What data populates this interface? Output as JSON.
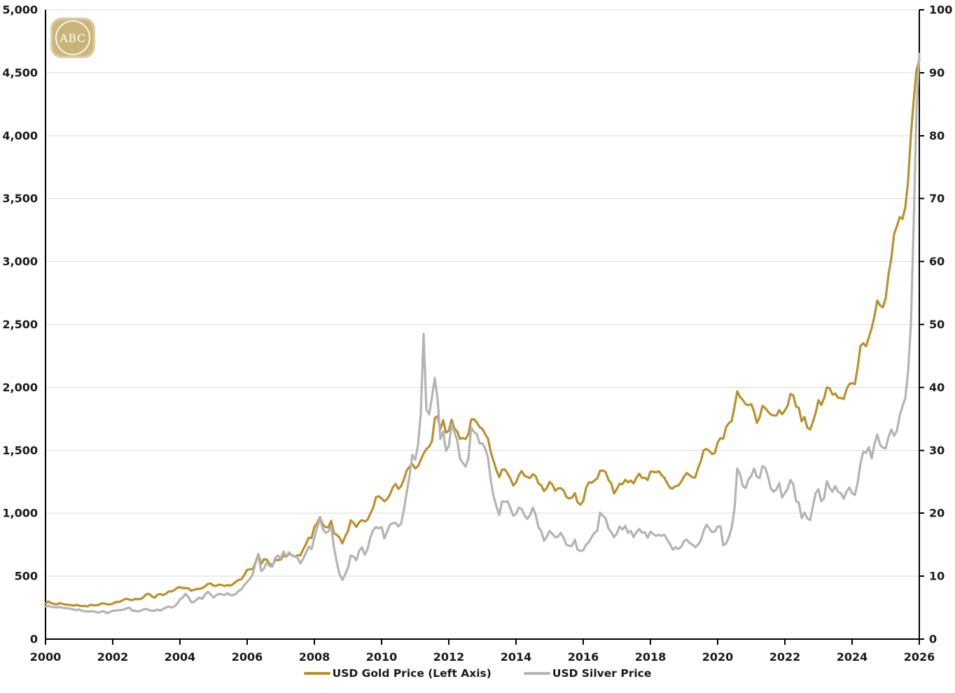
{
  "logo": {
    "text": "ABC",
    "tile_color": "#C9B377"
  },
  "colors": {
    "gold_line": "#B7922D",
    "silver_line": "#B4B4B4",
    "gridline": "#DADADA",
    "axis": "#000000",
    "text": "#1a1a1a",
    "background": "#ffffff"
  },
  "legend": {
    "position": "bottom-center",
    "items": [
      {
        "label": "USD Gold Price (Left Axis)",
        "color": "#B7922D"
      },
      {
        "label": "USD Silver Price",
        "color": "#B4B4B4"
      }
    ]
  },
  "chart_data": {
    "type": "line",
    "title": "",
    "grid": "horizontal-only",
    "legend_position": "bottom-center",
    "x_axis": {
      "label": "",
      "range": [
        2000,
        2026
      ],
      "tick_values": [
        2000,
        2002,
        2004,
        2006,
        2008,
        2010,
        2012,
        2014,
        2016,
        2018,
        2020,
        2022,
        2024,
        2026
      ],
      "tick_labels": [
        "2000",
        "2002",
        "2004",
        "2006",
        "2008",
        "2010",
        "2012",
        "2014",
        "2016",
        "2018",
        "2020",
        "2022",
        "2024",
        "2026"
      ]
    },
    "y_axis_left": {
      "label": "",
      "series": "USD Gold Price",
      "range": [
        0,
        5000
      ],
      "tick_values": [
        0,
        500,
        1000,
        1500,
        2000,
        2500,
        3000,
        3500,
        4000,
        4500,
        5000
      ],
      "tick_labels": [
        "0",
        "500",
        "1,000",
        "1,500",
        "2,000",
        "2,500",
        "3,000",
        "3,500",
        "4,000",
        "4,500",
        "5,000"
      ]
    },
    "y_axis_right": {
      "label": "",
      "series": "USD Silver Price",
      "range": [
        0,
        100
      ],
      "tick_values": [
        0,
        10,
        20,
        30,
        40,
        50,
        60,
        70,
        80,
        90,
        100
      ],
      "tick_labels": [
        "0",
        "10",
        "20",
        "30",
        "40",
        "50",
        "60",
        "70",
        "80",
        "90",
        "100"
      ]
    },
    "series": [
      {
        "name": "USD Gold Price (Left Axis)",
        "axis": "left",
        "color": "#B7922D",
        "x_start": 2000.0,
        "x_step": 0.08333333,
        "unit": "USD/oz",
        "values": [
          283,
          300,
          286,
          280,
          275,
          286,
          281,
          274,
          274,
          270,
          266,
          272,
          266,
          262,
          263,
          260,
          272,
          270,
          268,
          272,
          284,
          283,
          276,
          276,
          281,
          295,
          294,
          302,
          314,
          321,
          313,
          310,
          319,
          317,
          319,
          333,
          357,
          359,
          340,
          328,
          355,
          357,
          351,
          360,
          379,
          379,
          389,
          407,
          414,
          405,
          406,
          403,
          384,
          392,
          398,
          400,
          405,
          420,
          439,
          442,
          424,
          423,
          434,
          429,
          422,
          430,
          424,
          437,
          456,
          470,
          476,
          510,
          550,
          555,
          557,
          611,
          675,
          596,
          634,
          632,
          598,
          586,
          627,
          629,
          631,
          665,
          655,
          679,
          667,
          655,
          665,
          665,
          713,
          755,
          806,
          803,
          890,
          922,
          968,
          910,
          889,
          889,
          940,
          839,
          829,
          806,
          760,
          816,
          858,
          943,
          924,
          890,
          929,
          946,
          934,
          949,
          997,
          1043,
          1127,
          1135,
          1118,
          1095,
          1113,
          1149,
          1205,
          1233,
          1193,
          1216,
          1271,
          1342,
          1370,
          1391,
          1356,
          1373,
          1424,
          1474,
          1511,
          1529,
          1573,
          1756,
          1772,
          1666,
          1739,
          1640,
          1656,
          1743,
          1674,
          1650,
          1591,
          1598,
          1590,
          1626,
          1745,
          1747,
          1722,
          1685,
          1671,
          1628,
          1593,
          1485,
          1414,
          1343,
          1286,
          1347,
          1348,
          1316,
          1276,
          1221,
          1244,
          1301,
          1336,
          1299,
          1288,
          1279,
          1311,
          1296,
          1238,
          1222,
          1176,
          1200,
          1250,
          1227,
          1178,
          1198,
          1199,
          1181,
          1130,
          1117,
          1125,
          1159,
          1086,
          1068,
          1097,
          1200,
          1246,
          1242,
          1260,
          1276,
          1337,
          1340,
          1327,
          1266,
          1238,
          1157,
          1192,
          1234,
          1231,
          1266,
          1246,
          1260,
          1237,
          1283,
          1314,
          1280,
          1282,
          1264,
          1331,
          1330,
          1325,
          1334,
          1303,
          1281,
          1238,
          1201,
          1198,
          1215,
          1221,
          1250,
          1292,
          1320,
          1301,
          1286,
          1284,
          1359,
          1413,
          1500,
          1511,
          1495,
          1471,
          1479,
          1561,
          1597,
          1592,
          1683,
          1716,
          1732,
          1843,
          1969,
          1922,
          1900,
          1866,
          1858,
          1867,
          1808,
          1718,
          1762,
          1853,
          1835,
          1807,
          1784,
          1777,
          1777,
          1820,
          1787,
          1816,
          1856,
          1948,
          1937,
          1848,
          1837,
          1731,
          1765,
          1681,
          1664,
          1725,
          1798,
          1898,
          1860,
          1913,
          2000,
          1992,
          1943,
          1951,
          1918,
          1916,
          1907,
          1984,
          2026,
          2034,
          2025,
          2160,
          2330,
          2351,
          2327,
          2398,
          2470,
          2568,
          2690,
          2651,
          2636,
          2708,
          2897,
          3024,
          3218,
          3280,
          3353,
          3338,
          3430,
          3640,
          4000,
          4280,
          4520,
          4600
        ]
      },
      {
        "name": "USD Silver Price",
        "axis": "right",
        "color": "#B4B4B4",
        "x_start": 2000.0,
        "x_step": 0.08333333,
        "unit": "USD/oz",
        "values": [
          5.2,
          5.3,
          5.1,
          5.1,
          5.0,
          5.1,
          5.0,
          4.9,
          4.9,
          4.8,
          4.7,
          4.6,
          4.7,
          4.5,
          4.4,
          4.4,
          4.4,
          4.4,
          4.3,
          4.2,
          4.4,
          4.4,
          4.1,
          4.3,
          4.5,
          4.5,
          4.6,
          4.6,
          4.7,
          4.9,
          5.0,
          4.5,
          4.5,
          4.4,
          4.5,
          4.7,
          4.8,
          4.6,
          4.5,
          4.5,
          4.7,
          4.5,
          4.8,
          5.0,
          5.2,
          5.0,
          5.2,
          5.6,
          6.3,
          6.6,
          7.2,
          6.7,
          5.9,
          5.9,
          6.3,
          6.6,
          6.4,
          7.1,
          7.5,
          7.1,
          6.6,
          7.0,
          7.2,
          7.1,
          7.0,
          7.3,
          7.0,
          7.0,
          7.2,
          7.7,
          7.9,
          8.6,
          9.1,
          9.6,
          10.3,
          12.1,
          13.4,
          10.8,
          11.2,
          12.2,
          11.6,
          11.5,
          12.9,
          13.3,
          12.8,
          13.9,
          13.2,
          13.8,
          13.2,
          13.2,
          12.9,
          12.0,
          12.8,
          13.7,
          14.7,
          14.3,
          16.1,
          17.7,
          19.2,
          17.5,
          16.9,
          17.1,
          18.0,
          14.6,
          12.2,
          10.3,
          9.4,
          10.3,
          11.3,
          13.3,
          13.1,
          12.5,
          14.0,
          14.6,
          13.4,
          14.3,
          16.2,
          17.3,
          17.8,
          17.6,
          17.8,
          16.0,
          17.1,
          18.2,
          18.4,
          18.5,
          17.9,
          18.4,
          20.6,
          23.4,
          26.0,
          29.3,
          28.5,
          30.8,
          35.8,
          48.5,
          36.5,
          35.7,
          38.5,
          41.5,
          38.2,
          31.8,
          33.0,
          29.9,
          30.7,
          34.1,
          32.9,
          31.6,
          28.7,
          28.0,
          27.4,
          28.7,
          33.6,
          32.9,
          32.6,
          31.1,
          31.1,
          30.3,
          28.8,
          25.2,
          22.7,
          21.1,
          19.7,
          21.9,
          21.8,
          21.9,
          20.8,
          19.6,
          19.9,
          20.9,
          20.7,
          19.7,
          19.1,
          19.7,
          20.9,
          19.8,
          17.8,
          17.2,
          15.6,
          16.3,
          17.2,
          16.7,
          16.2,
          16.3,
          16.9,
          16.1,
          15.0,
          14.8,
          14.8,
          15.8,
          14.2,
          14.0,
          14.1,
          15.0,
          15.4,
          16.2,
          16.9,
          17.2,
          20.1,
          19.6,
          19.2,
          17.6,
          17.0,
          16.2,
          16.8,
          17.9,
          17.4,
          18.0,
          16.9,
          17.2,
          16.2,
          17.0,
          17.5,
          16.9,
          17.0,
          16.1,
          17.1,
          16.7,
          16.4,
          16.6,
          16.4,
          16.6,
          15.8,
          15.1,
          14.2,
          14.6,
          14.3,
          14.7,
          15.6,
          15.8,
          15.3,
          15.0,
          14.6,
          15.0,
          15.7,
          17.2,
          18.2,
          17.6,
          17.0,
          17.1,
          17.9,
          17.9,
          14.9,
          15.2,
          16.2,
          17.7,
          20.6,
          27.1,
          26.2,
          24.3,
          24.0,
          25.4,
          25.9,
          27.1,
          25.8,
          25.6,
          27.5,
          27.2,
          25.8,
          23.9,
          23.4,
          23.8,
          24.8,
          22.5,
          23.2,
          23.9,
          25.3,
          24.6,
          21.9,
          21.7,
          19.2,
          20.1,
          19.2,
          18.9,
          21.1,
          23.2,
          23.8,
          21.9,
          22.4,
          25.1,
          24.0,
          23.4,
          24.3,
          23.4,
          23.2,
          22.3,
          23.4,
          24.1,
          23.2,
          22.9,
          24.9,
          27.9,
          29.8,
          29.6,
          30.5,
          28.7,
          31.0,
          32.5,
          30.9,
          30.4,
          30.3,
          32.1,
          33.3,
          32.3,
          33.1,
          35.5,
          37.0,
          38.3,
          42.5,
          50.0,
          66.0,
          84.0,
          93.0
        ]
      }
    ]
  }
}
